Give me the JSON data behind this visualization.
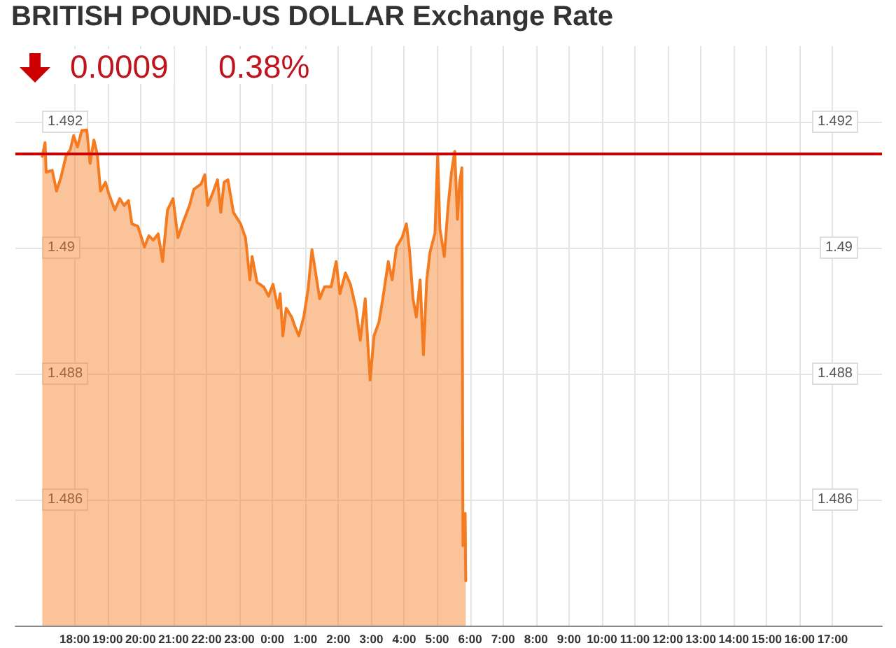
{
  "chart_data": {
    "type": "area",
    "title": "BRITISH POUND-US DOLLAR Exchange Rate",
    "subtitle": "0.0009",
    "annotations": [
      "0.38%"
    ],
    "x": [
      "--01-01T17:01",
      "--01-01T17:06",
      "--01-01T17:08",
      "--01-01T17:19",
      "--01-01T17:27",
      "--01-01T17:35",
      "--01-01T17:44",
      "--01-01T17:52",
      "--01-01T17:58",
      "--01-01T18:05",
      "--01-01T18:13",
      "--01-01T18:22",
      "--01-01T18:28",
      "--01-01T18:35",
      "--01-01T18:41",
      "--01-01T18:47",
      "--01-01T18:56",
      "--01-01T19:02",
      "--01-01T19:13",
      "--01-01T19:22",
      "--01-01T19:30",
      "--01-01T19:38",
      "--01-01T19:44",
      "--01-01T19:55",
      "--01-01T20:07",
      "--01-01T20:15",
      "--01-01T20:23",
      "--01-01T20:32",
      "--01-01T20:40",
      "--01-01T20:49",
      "--01-01T20:59",
      "--01-01T21:08",
      "--01-01T21:18",
      "--01-01T21:29",
      "--01-01T21:37",
      "--01-01T21:50",
      "--01-01T21:57",
      "--01-01T22:02",
      "--01-01T22:11",
      "--01-01T22:20",
      "--01-01T22:26",
      "--01-01T22:32",
      "--01-01T22:39",
      "--01-01T22:49",
      "--01-01T23:02",
      "--01-01T23:11",
      "--01-01T23:19",
      "--01-01T23:23",
      "--01-01T23:32",
      "--01-01T23:44",
      "--01-01T23:53",
      "--01-02T00:01",
      "--01-02T00:10",
      "--01-02T00:14",
      "--01-02T00:19",
      "--01-02T00:25",
      "--01-02T00:35",
      "--01-02T00:41",
      "--01-02T00:48",
      "--01-02T00:57",
      "--01-02T01:05",
      "--01-02T01:12",
      "--01-02T01:18",
      "--01-02T01:26",
      "--01-02T01:35",
      "--01-02T01:47",
      "--01-02T01:56",
      "--01-02T02:03",
      "--01-02T02:13",
      "--01-02T02:22",
      "--01-02T02:32",
      "--01-02T02:40",
      "--01-02T02:49",
      "--01-02T02:55",
      "--01-02T02:58",
      "--01-02T03:05",
      "--01-02T03:14",
      "--01-02T03:21",
      "--01-02T03:31",
      "--01-02T03:38",
      "--01-02T03:46",
      "--01-02T03:56",
      "--01-02T04:04",
      "--01-02T04:10",
      "--01-02T04:16",
      "--01-02T04:22",
      "--01-02T04:29",
      "--01-02T04:35",
      "--01-02T04:41",
      "--01-02T04:47",
      "--01-02T04:56",
      "--01-02T05:01",
      "--01-02T05:05",
      "--01-02T05:13",
      "--01-02T05:20",
      "--01-02T05:26",
      "--01-02T05:32",
      "--01-02T05:37",
      "--01-02T05:41",
      "--01-02T05:45",
      "--01-02T05:47",
      "--01-02T05:51",
      "--01-02T05:52"
    ],
    "series": [
      {
        "color": "#f47b20",
        "values": [
          1.49145,
          1.49167,
          1.4912,
          1.49123,
          1.4909,
          1.49112,
          1.49145,
          1.49156,
          1.49178,
          1.4916,
          1.49186,
          1.49187,
          1.49134,
          1.49171,
          1.49149,
          1.4909,
          1.49104,
          1.49086,
          1.4906,
          1.49078,
          1.49067,
          1.49075,
          1.49038,
          1.49034,
          1.49001,
          1.49019,
          1.49012,
          1.49022,
          1.48978,
          1.4906,
          1.49078,
          1.49016,
          1.49042,
          1.49067,
          1.49093,
          1.49101,
          1.49116,
          1.49067,
          1.49086,
          1.49108,
          1.49056,
          1.49104,
          1.49108,
          1.49056,
          1.49038,
          1.49016,
          1.48949,
          1.48986,
          1.48945,
          1.48938,
          1.48923,
          1.48942,
          1.48904,
          1.48927,
          1.4886,
          1.48904,
          1.4889,
          1.48875,
          1.4886,
          1.4889,
          1.48934,
          1.48997,
          1.48964,
          1.48919,
          1.48938,
          1.48938,
          1.48978,
          1.48927,
          1.4896,
          1.48942,
          1.48904,
          1.48853,
          1.48919,
          1.4883,
          1.4879,
          1.4886,
          1.48882,
          1.48919,
          1.48978,
          1.48949,
          1.49001,
          1.49016,
          1.49038,
          1.48993,
          1.48919,
          1.4889,
          1.48949,
          1.4883,
          1.48949,
          1.48993,
          1.49023,
          1.49149,
          1.4903,
          1.48986,
          1.49067,
          1.49119,
          1.49153,
          1.49045,
          1.49104,
          1.49127,
          1.48527,
          1.48578,
          1.48471
        ]
      }
    ],
    "xlim": [
      "--01-01T16:12",
      "--01-02T18:30"
    ],
    "xticks": [
      {
        "value": "--01-01T18:00",
        "label": "18:00"
      },
      {
        "value": "--01-01T19:00",
        "label": "19:00"
      },
      {
        "value": "--01-01T20:00",
        "label": "20:00"
      },
      {
        "value": "--01-01T21:00",
        "label": "21:00"
      },
      {
        "value": "--01-01T22:00",
        "label": "22:00"
      },
      {
        "value": "--01-01T23:00",
        "label": "23:00"
      },
      {
        "value": "--01-02T00:00",
        "label": "0:00"
      },
      {
        "value": "--01-02T01:00",
        "label": "1:00"
      },
      {
        "value": "--01-02T02:00",
        "label": "2:00"
      },
      {
        "value": "--01-02T03:00",
        "label": "3:00"
      },
      {
        "value": "--01-02T04:00",
        "label": "4:00"
      },
      {
        "value": "--01-02T05:00",
        "label": "5:00"
      },
      {
        "value": "--01-02T06:00",
        "label": "6:00"
      },
      {
        "value": "--01-02T07:00",
        "label": "7:00"
      },
      {
        "value": "--01-02T08:00",
        "label": "8:00"
      },
      {
        "value": "--01-02T09:00",
        "label": "9:00"
      },
      {
        "value": "--01-02T10:00",
        "label": "10:00"
      },
      {
        "value": "--01-02T11:00",
        "label": "11:00"
      },
      {
        "value": "--01-02T12:00",
        "label": "12:00"
      },
      {
        "value": "--01-02T13:00",
        "label": "13:00"
      },
      {
        "value": "--01-02T14:00",
        "label": "14:00"
      },
      {
        "value": "--01-02T15:00",
        "label": "15:00"
      },
      {
        "value": "--01-02T16:00",
        "label": "16:00"
      },
      {
        "value": "--01-02T17:00",
        "label": "17:00"
      }
    ],
    "ylim": [
      1.484,
      1.4932
    ],
    "yticks": [
      1.486,
      1.488,
      1.49,
      1.492
    ],
    "y2lim": [
      1.484,
      1.4932
    ],
    "y2ticks": [
      1.486,
      1.488,
      1.49,
      1.492
    ],
    "grid": true,
    "ref_lines": [
      {
        "axis": "y",
        "value": 1.4915,
        "color": "#cc0000"
      }
    ]
  }
}
